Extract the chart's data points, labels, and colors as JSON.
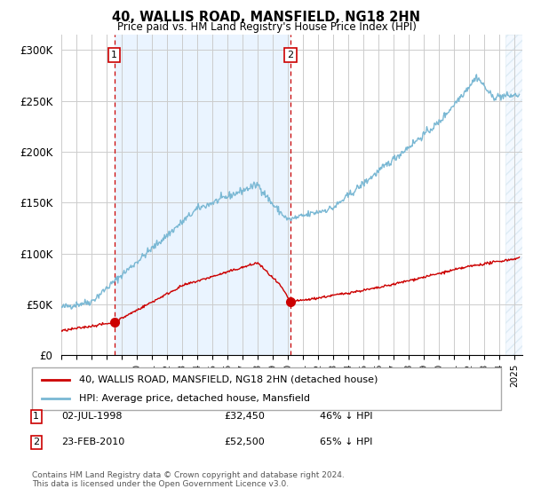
{
  "title": "40, WALLIS ROAD, MANSFIELD, NG18 2HN",
  "subtitle": "Price paid vs. HM Land Registry's House Price Index (HPI)",
  "ylabel_ticks": [
    "£0",
    "£50K",
    "£100K",
    "£150K",
    "£200K",
    "£250K",
    "£300K"
  ],
  "ytick_values": [
    0,
    50000,
    100000,
    150000,
    200000,
    250000,
    300000
  ],
  "ylim": [
    0,
    315000
  ],
  "xlim_start": 1995.0,
  "xlim_end": 2025.5,
  "purchase1_date": 1998.5,
  "purchase1_price": 32450,
  "purchase2_date": 2010.15,
  "purchase2_price": 52500,
  "legend_line1": "40, WALLIS ROAD, MANSFIELD, NG18 2HN (detached house)",
  "legend_line2": "HPI: Average price, detached house, Mansfield",
  "footer": "Contains HM Land Registry data © Crown copyright and database right 2024.\nThis data is licensed under the Open Government Licence v3.0.",
  "hpi_color": "#7ab8d4",
  "price_color": "#cc0000",
  "vline_color": "#cc0000",
  "bg_shaded_color": "#ddeeff",
  "grid_color": "#cccccc",
  "box_color": "#cc0000",
  "table_data": [
    [
      "1",
      "02-JUL-1998",
      "£32,450",
      "46% ↓ HPI"
    ],
    [
      "2",
      "23-FEB-2010",
      "£52,500",
      "65% ↓ HPI"
    ]
  ]
}
